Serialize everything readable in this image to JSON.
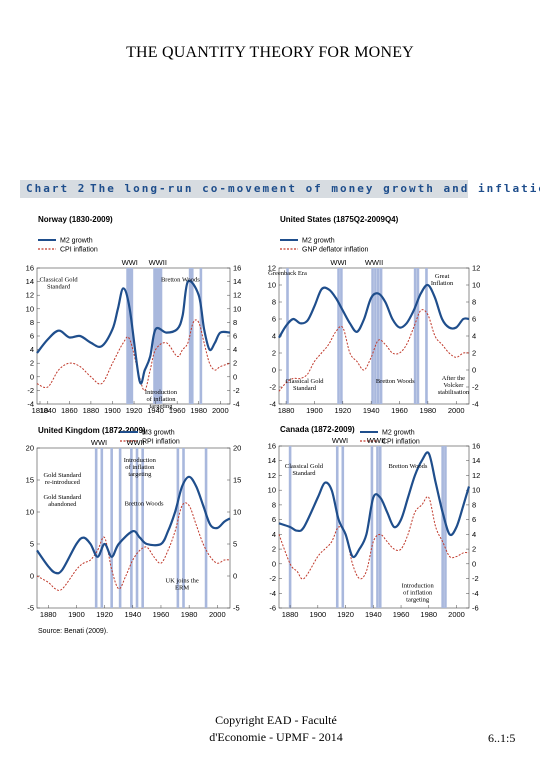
{
  "slide": {
    "title": "THE QUANTITY THEORY FOR MONEY",
    "footer_line1": "Copyright EAD - Faculté",
    "footer_line2": "d'Economie - UPMF - 2014",
    "page_number": "6..1:5"
  },
  "figure": {
    "label": "Chart 2",
    "title": "The long-run co-movement of money growth and inflation",
    "source": "Source: Benati (2009).",
    "colors": {
      "money": "#1f4e8c",
      "inflation": "#c0392b",
      "bars": "#a9b8dd",
      "header_bg": "#d7dce1"
    }
  },
  "chart_data": [
    {
      "type": "line",
      "title": "Norway (1830-2009)",
      "legend": [
        "M2 growth",
        "CPI inflation"
      ],
      "xlim": [
        1830,
        2009
      ],
      "xticks": [
        1810,
        1840,
        1860,
        1880,
        1900,
        1920,
        1940,
        1960,
        1980,
        2000
      ],
      "ylim": [
        -4,
        16
      ],
      "yticks": [
        -4,
        -2,
        0,
        2,
        4,
        6,
        8,
        10,
        12,
        14,
        16
      ],
      "wars": [
        {
          "label": "WWI",
          "x": 1916
        },
        {
          "label": "WWII",
          "x": 1942
        }
      ],
      "bands": [
        1914,
        1916,
        1918,
        1939,
        1941,
        1943,
        1945,
        1972,
        1974,
        1982
      ],
      "annotations": [
        "Classical Gold Standard",
        "Bretton Woods",
        "Introduction of inflation targeting"
      ],
      "series": [
        {
          "name": "M2 growth",
          "x": [
            1830,
            1840,
            1850,
            1860,
            1870,
            1880,
            1890,
            1900,
            1905,
            1910,
            1916,
            1925,
            1930,
            1935,
            1940,
            1950,
            1960,
            1965,
            1970,
            1980,
            1985,
            1990,
            1995,
            2000,
            2009
          ],
          "values": [
            3.5,
            5.5,
            6.8,
            5.8,
            6,
            5,
            4.5,
            7,
            10,
            13,
            10,
            -0.5,
            1,
            3,
            7,
            6.5,
            7,
            9,
            14,
            12,
            7,
            4,
            5,
            6.5,
            6.5
          ]
        },
        {
          "name": "CPI inflation",
          "x": [
            1830,
            1840,
            1850,
            1860,
            1870,
            1880,
            1890,
            1900,
            1910,
            1916,
            1925,
            1930,
            1935,
            1940,
            1950,
            1960,
            1965,
            1970,
            1975,
            1980,
            1985,
            1990,
            1995,
            2000,
            2009
          ],
          "values": [
            -1,
            -1.5,
            1,
            2,
            1.5,
            0,
            -1,
            2,
            5,
            5.5,
            0,
            -2,
            1,
            4,
            5,
            3,
            4,
            5,
            8,
            8,
            5,
            2,
            1,
            1.5,
            2
          ]
        }
      ]
    },
    {
      "type": "line",
      "title": "United States (1875Q2-2009Q4)",
      "legend": [
        "M2 growth",
        "GNP deflator inflation"
      ],
      "xlim": [
        1875,
        2009
      ],
      "xticks": [
        1880,
        1900,
        1920,
        1940,
        1960,
        1980,
        2000
      ],
      "ylim": [
        -4,
        12
      ],
      "yticks": [
        -4,
        -2,
        0,
        2,
        4,
        6,
        8,
        10,
        12
      ],
      "wars": [
        {
          "label": "WWI",
          "x": 1917
        },
        {
          "label": "WWII",
          "x": 1942
        }
      ],
      "bands": [
        1881,
        1917,
        1919,
        1941,
        1943,
        1945,
        1947,
        1971,
        1973,
        1979
      ],
      "annotations": [
        "Greenback Era",
        "Great Inflation",
        "Classical Gold Standard",
        "Bretton Woods",
        "After the Volcker stabilisation"
      ],
      "series": [
        {
          "name": "M2 growth",
          "x": [
            1875,
            1880,
            1885,
            1890,
            1895,
            1900,
            1905,
            1910,
            1915,
            1920,
            1925,
            1930,
            1935,
            1940,
            1945,
            1950,
            1955,
            1960,
            1965,
            1970,
            1975,
            1980,
            1985,
            1990,
            1995,
            2000,
            2005,
            2009
          ],
          "values": [
            3.8,
            5.2,
            6,
            5.5,
            5.8,
            7.5,
            9.5,
            9.5,
            8.5,
            7,
            5.5,
            4.5,
            6,
            8.5,
            9,
            8,
            6,
            5,
            5.5,
            7,
            9,
            10,
            8.5,
            6,
            5,
            5,
            6,
            6
          ]
        },
        {
          "name": "GNP deflator inflation",
          "x": [
            1875,
            1880,
            1885,
            1890,
            1895,
            1900,
            1905,
            1910,
            1915,
            1920,
            1925,
            1930,
            1935,
            1940,
            1945,
            1950,
            1955,
            1960,
            1965,
            1970,
            1975,
            1980,
            1985,
            1990,
            1995,
            2000,
            2005,
            2009
          ],
          "values": [
            -2.5,
            -1.5,
            -1,
            -1,
            -0.5,
            1,
            2,
            3,
            4.5,
            5,
            2,
            1,
            0,
            1.5,
            3.5,
            3,
            2,
            2,
            3,
            5,
            7,
            6.5,
            4,
            3,
            2,
            1.5,
            2,
            2
          ]
        }
      ]
    },
    {
      "type": "line",
      "title": "United Kingdom (1872-2009)",
      "legend": [
        "M3 growth",
        "RPI inflation"
      ],
      "xlim": [
        1872,
        2009
      ],
      "xticks": [
        1880,
        1900,
        1920,
        1940,
        1960,
        1980,
        2000
      ],
      "ylim": [
        -5,
        20
      ],
      "yticks": [
        -5,
        0,
        5,
        10,
        15,
        20
      ],
      "wars": [
        {
          "label": "WWI",
          "x": 1916
        },
        {
          "label": "WWII",
          "x": 1942
        }
      ],
      "bands": [
        1914,
        1918,
        1925,
        1931,
        1939,
        1943,
        1947,
        1972,
        1976,
        1992
      ],
      "annotations": [
        "Introduction of inflation targeting",
        "Gold Standard re-introduced",
        "Gold Standard abandoned",
        "Bretton Woods",
        "UK joins the ERM"
      ],
      "series": [
        {
          "name": "M3 growth",
          "x": [
            1872,
            1880,
            1885,
            1890,
            1900,
            1905,
            1910,
            1915,
            1920,
            1925,
            1930,
            1940,
            1945,
            1950,
            1960,
            1965,
            1970,
            1975,
            1980,
            1985,
            1990,
            1995,
            2000,
            2005,
            2009
          ],
          "values": [
            4,
            1.5,
            0.5,
            1,
            5,
            6,
            5,
            3,
            5,
            3,
            5,
            7,
            6,
            5,
            5,
            7,
            10,
            14,
            15.5,
            14,
            11,
            8,
            7.5,
            8.5,
            9
          ]
        },
        {
          "name": "RPI inflation",
          "x": [
            1872,
            1880,
            1885,
            1890,
            1900,
            1905,
            1910,
            1915,
            1920,
            1925,
            1930,
            1935,
            1940,
            1945,
            1950,
            1955,
            1960,
            1965,
            1970,
            1975,
            1980,
            1985,
            1990,
            1995,
            2000,
            2005,
            2009
          ],
          "values": [
            0,
            -1,
            -2,
            -2,
            1,
            2,
            2.5,
            4,
            6,
            1,
            -2,
            0,
            2.5,
            4,
            4.5,
            3,
            2,
            4,
            7,
            11,
            11,
            8,
            5,
            3,
            2,
            2.5,
            2.5
          ]
        }
      ]
    },
    {
      "type": "line",
      "title": "Canada (1872-2009)",
      "legend": [
        "M2 growth",
        "CPI inflation"
      ],
      "xlim": [
        1872,
        2009
      ],
      "xticks": [
        1880,
        1900,
        1920,
        1940,
        1960,
        1980,
        2000
      ],
      "ylim": [
        -6,
        16
      ],
      "yticks": [
        -6,
        -4,
        -2,
        0,
        2,
        4,
        6,
        8,
        10,
        12,
        14,
        16
      ],
      "wars": [
        {
          "label": "WWI",
          "x": 1916
        },
        {
          "label": "WWII",
          "x": 1942
        }
      ],
      "bands": [
        1880,
        1914,
        1918,
        1939,
        1943,
        1945,
        1990,
        1992
      ],
      "annotations": [
        "Classical Gold Standard",
        "Bretton Woods",
        "Introduction of inflation targeting"
      ],
      "series": [
        {
          "name": "M2 growth",
          "x": [
            1872,
            1880,
            1885,
            1890,
            1900,
            1905,
            1910,
            1915,
            1920,
            1925,
            1930,
            1935,
            1940,
            1945,
            1950,
            1955,
            1960,
            1965,
            1970,
            1975,
            1980,
            1985,
            1990,
            1995,
            2000,
            2005,
            2009
          ],
          "values": [
            5.5,
            5,
            4.5,
            5,
            9,
            11,
            10,
            6,
            4,
            1,
            2,
            4,
            9,
            9,
            7,
            5,
            6,
            9,
            12,
            14,
            15,
            11,
            7,
            4,
            5,
            8,
            10.5
          ]
        },
        {
          "name": "CPI inflation",
          "x": [
            1872,
            1880,
            1885,
            1890,
            1900,
            1905,
            1910,
            1915,
            1920,
            1925,
            1930,
            1935,
            1940,
            1945,
            1950,
            1955,
            1960,
            1965,
            1970,
            1975,
            1980,
            1985,
            1990,
            1995,
            2000,
            2005,
            2009
          ],
          "values": [
            4,
            0,
            -1,
            -2,
            1,
            2,
            3,
            5,
            4,
            0,
            -2,
            -1,
            3,
            4,
            3,
            2,
            2,
            4,
            7,
            8,
            9,
            5,
            3,
            1,
            1,
            1.5,
            1.5
          ]
        }
      ]
    }
  ]
}
